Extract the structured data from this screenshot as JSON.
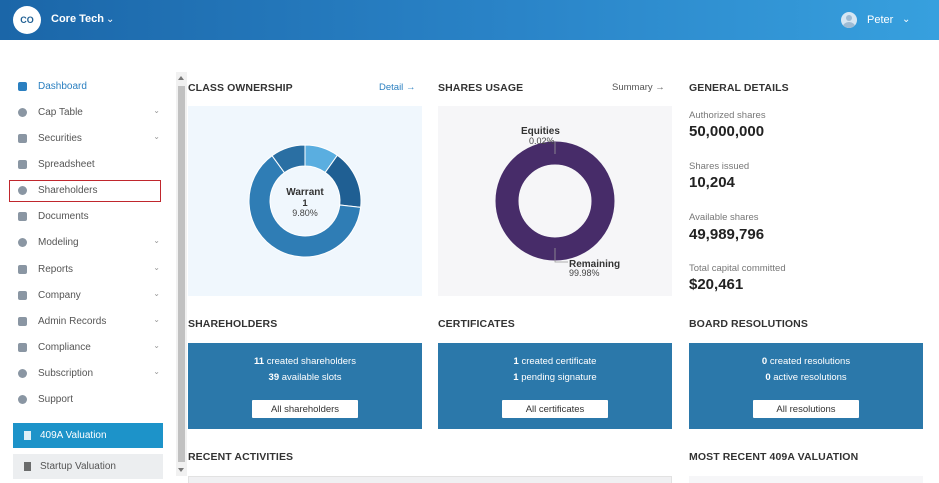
{
  "header": {
    "logo_initials": "CO",
    "company_name": "Core Tech",
    "user_name": "Peter"
  },
  "sidebar": {
    "items": [
      {
        "label": "Dashboard",
        "icon": "dashboard-icon",
        "chevron": false
      },
      {
        "label": "Cap Table",
        "icon": "pie-icon",
        "chevron": true
      },
      {
        "label": "Securities",
        "icon": "clipboard-icon",
        "chevron": true
      },
      {
        "label": "Spreadsheet",
        "icon": "spreadsheet-icon",
        "chevron": false
      },
      {
        "label": "Shareholders",
        "icon": "user-icon",
        "chevron": false
      },
      {
        "label": "Documents",
        "icon": "folder-icon",
        "chevron": false
      },
      {
        "label": "Modeling",
        "icon": "bulb-icon",
        "chevron": true
      },
      {
        "label": "Reports",
        "icon": "report-icon",
        "chevron": true
      },
      {
        "label": "Company",
        "icon": "building-icon",
        "chevron": true
      },
      {
        "label": "Admin Records",
        "icon": "records-icon",
        "chevron": true
      },
      {
        "label": "Compliance",
        "icon": "shield-icon",
        "chevron": true
      },
      {
        "label": "Subscription",
        "icon": "dollar-icon",
        "chevron": true
      },
      {
        "label": "Support",
        "icon": "support-icon",
        "chevron": false
      }
    ],
    "valuation_409a": "409A Valuation",
    "startup_valuation": "Startup Valuation"
  },
  "class_ownership": {
    "title": "CLASS OWNERSHIP",
    "link": "Detail",
    "center_name": "Warrant",
    "center_count": "1",
    "center_percent": "9.80%",
    "segments": [
      {
        "fraction": 0.098,
        "color": "#5aaee0"
      },
      {
        "fraction": 0.17,
        "color": "#1f5f93"
      },
      {
        "fraction": 0.632,
        "color": "#2f7db5"
      },
      {
        "fraction": 0.1,
        "color": "#2a6fa3"
      }
    ]
  },
  "shares_usage": {
    "title": "SHARES USAGE",
    "link": "Summary",
    "equities_label": "Equities",
    "equities_percent": "0.02%",
    "remaining_label": "Remaining",
    "remaining_percent": "99.98%",
    "ring_color": "#472c69"
  },
  "general_details": {
    "title": "GENERAL DETAILS",
    "authorized_label": "Authorized shares",
    "authorized_value": "50,000,000",
    "issued_label": "Shares issued",
    "issued_value": "10,204",
    "available_label": "Available shares",
    "available_value": "49,989,796",
    "capital_label": "Total capital committed",
    "capital_value": "$20,461"
  },
  "shareholders": {
    "title": "SHAREHOLDERS",
    "count1": "11",
    "text1": "created shareholders",
    "count2": "39",
    "text2": "available slots",
    "button": "All shareholders"
  },
  "certificates": {
    "title": "CERTIFICATES",
    "count1": "1",
    "text1": "created certificate",
    "count2": "1",
    "text2": "pending signature",
    "button": "All certificates"
  },
  "board_resolutions": {
    "title": "BOARD RESOLUTIONS",
    "count1": "0",
    "text1": "created resolutions",
    "count2": "0",
    "text2": "active resolutions",
    "button": "All resolutions"
  },
  "recent_activities": {
    "title": "RECENT ACTIVITIES"
  },
  "recent_409a": {
    "title": "MOST RECENT 409A VALUATION"
  }
}
